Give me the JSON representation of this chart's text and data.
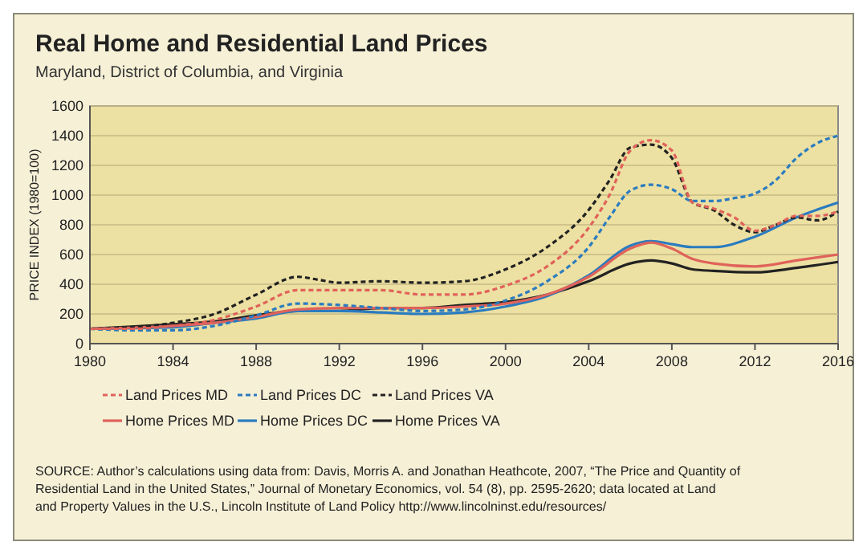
{
  "chart_data": {
    "type": "line",
    "title": "Real Home and Residential Land Prices",
    "subtitle": "Maryland, District of Columbia, and Virginia",
    "ylabel": "PRICE INDEX (1980=100)",
    "xlim": [
      1980,
      2016
    ],
    "xticks": [
      1980,
      1984,
      1988,
      1992,
      1996,
      2000,
      2004,
      2008,
      2012,
      2016
    ],
    "ylim": [
      0,
      1600
    ],
    "yticks": [
      0,
      200,
      400,
      600,
      800,
      1000,
      1200,
      1400,
      1600
    ],
    "grid": "y",
    "legend": "bottom",
    "series": [
      {
        "name": "Land Prices MD",
        "color": "#e0625a",
        "line_style": "dashed",
        "x": [
          1980,
          1982,
          1984,
          1986,
          1988,
          1990,
          1992,
          1994,
          1996,
          1998,
          2000,
          2002,
          2004,
          2005,
          2006,
          2007,
          2008,
          2009,
          2010,
          2011,
          2012,
          2013,
          2014,
          2015,
          2016
        ],
        "values": [
          100,
          100,
          120,
          160,
          250,
          360,
          360,
          360,
          330,
          330,
          390,
          520,
          780,
          1000,
          1300,
          1370,
          1300,
          950,
          910,
          850,
          760,
          800,
          860,
          860,
          890
        ]
      },
      {
        "name": "Land Prices DC",
        "color": "#2b7bbf",
        "line_style": "dashed",
        "x": [
          1980,
          1982,
          1984,
          1986,
          1988,
          1990,
          1992,
          1994,
          1996,
          1998,
          2000,
          2002,
          2004,
          2005,
          2006,
          2007,
          2008,
          2009,
          2010,
          2011,
          2012,
          2013,
          2014,
          2015,
          2016
        ],
        "values": [
          100,
          90,
          90,
          120,
          190,
          270,
          260,
          240,
          220,
          230,
          290,
          420,
          650,
          850,
          1030,
          1070,
          1040,
          960,
          960,
          980,
          1010,
          1100,
          1250,
          1350,
          1400
        ]
      },
      {
        "name": "Land Prices VA",
        "color": "#222222",
        "line_style": "dashed",
        "x": [
          1980,
          1982,
          1984,
          1986,
          1988,
          1990,
          1991,
          1992,
          1994,
          1996,
          1998,
          2000,
          2002,
          2004,
          2005,
          2006,
          2007,
          2008,
          2009,
          2010,
          2011,
          2012,
          2013,
          2014,
          2015,
          2016
        ],
        "values": [
          100,
          110,
          140,
          200,
          330,
          450,
          430,
          410,
          420,
          410,
          420,
          500,
          650,
          900,
          1100,
          1320,
          1340,
          1250,
          950,
          900,
          800,
          750,
          800,
          850,
          830,
          890
        ]
      },
      {
        "name": "Home Prices MD",
        "color": "#e0625a",
        "line_style": "solid",
        "x": [
          1980,
          1984,
          1986,
          1988,
          1990,
          1992,
          1994,
          1996,
          1998,
          2000,
          2002,
          2004,
          2006,
          2007,
          2008,
          2009,
          2010,
          2012,
          2014,
          2016
        ],
        "values": [
          100,
          120,
          140,
          180,
          230,
          240,
          240,
          240,
          250,
          270,
          330,
          450,
          640,
          680,
          640,
          570,
          540,
          520,
          560,
          600
        ]
      },
      {
        "name": "Home Prices DC",
        "color": "#2b7bbf",
        "line_style": "solid",
        "x": [
          1980,
          1984,
          1986,
          1988,
          1990,
          1992,
          1994,
          1996,
          1998,
          2000,
          2002,
          2004,
          2006,
          2007,
          2008,
          2009,
          2010,
          2012,
          2014,
          2016
        ],
        "values": [
          100,
          110,
          140,
          170,
          220,
          220,
          210,
          200,
          210,
          250,
          320,
          460,
          660,
          690,
          670,
          650,
          650,
          720,
          850,
          950
        ]
      },
      {
        "name": "Home Prices VA",
        "color": "#222222",
        "line_style": "solid",
        "x": [
          1980,
          1984,
          1986,
          1988,
          1990,
          1992,
          1994,
          1996,
          1998,
          2000,
          2002,
          2004,
          2006,
          2007,
          2008,
          2009,
          2010,
          2012,
          2014,
          2016
        ],
        "values": [
          100,
          130,
          150,
          190,
          220,
          220,
          240,
          240,
          260,
          280,
          330,
          420,
          540,
          560,
          540,
          500,
          490,
          480,
          510,
          550
        ]
      }
    ],
    "annotations": [
      "SOURCE: Author’s calculations using data from: Davis, Morris A. and Jonathan Heathcote, 2007, “The Price and Quantity of Residential Land in the United States,” Journal of Monetary Economics, vol. 54 (8), pp. 2595-2620; data located at Land and Property Values in the U.S., Lincoln Institute of Land Policy http://www.lincolninst.edu/resources/"
    ]
  }
}
